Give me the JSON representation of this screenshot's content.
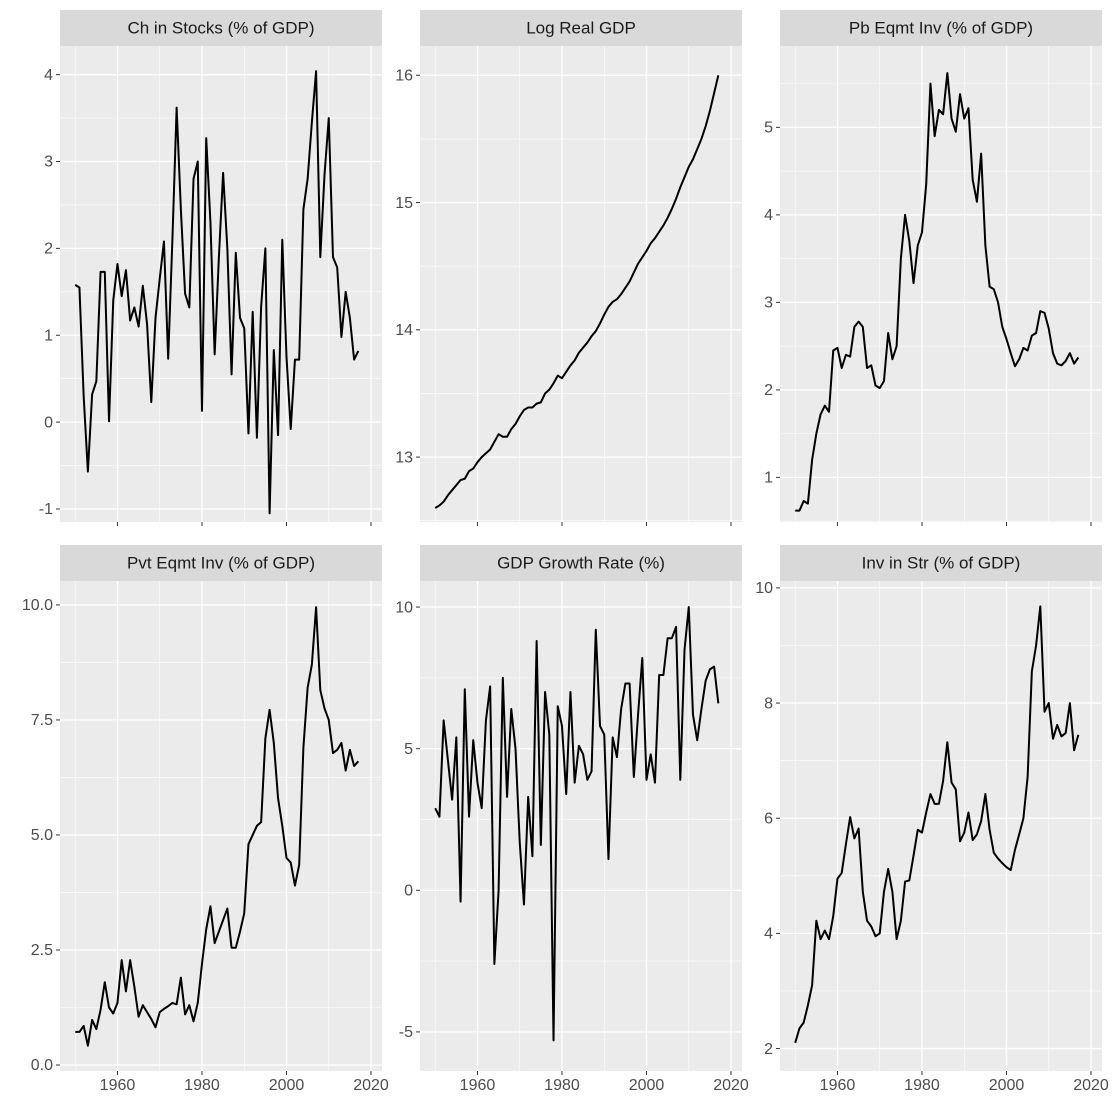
{
  "chart_data": [
    {
      "type": "line",
      "title": "Ch in Stocks (% of GDP)",
      "color": "#000000",
      "grid": true,
      "x": [
        1950,
        1951,
        1952,
        1953,
        1954,
        1955,
        1956,
        1957,
        1958,
        1959,
        1960,
        1961,
        1962,
        1963,
        1964,
        1965,
        1966,
        1967,
        1968,
        1969,
        1970,
        1971,
        1972,
        1973,
        1974,
        1975,
        1976,
        1977,
        1978,
        1979,
        1980,
        1981,
        1982,
        1983,
        1984,
        1985,
        1986,
        1987,
        1988,
        1989,
        1990,
        1991,
        1992,
        1993,
        1994,
        1995,
        1996,
        1997,
        1998,
        1999,
        2000,
        2001,
        2002,
        2003,
        2004,
        2005,
        2006,
        2007,
        2008,
        2009,
        2010,
        2011,
        2012,
        2013,
        2014,
        2015,
        2016,
        2017
      ],
      "values": [
        1.58,
        1.55,
        0.3,
        -0.57,
        0.32,
        0.47,
        1.73,
        1.73,
        0.01,
        1.4,
        1.82,
        1.45,
        1.75,
        1.17,
        1.32,
        1.1,
        1.57,
        1.13,
        0.23,
        1.2,
        1.65,
        2.08,
        0.73,
        2.1,
        3.62,
        2.45,
        1.48,
        1.32,
        2.8,
        3.0,
        0.13,
        3.27,
        2.3,
        0.78,
        1.9,
        2.87,
        2.0,
        0.55,
        1.95,
        1.2,
        1.08,
        -0.13,
        1.27,
        -0.18,
        1.33,
        2.0,
        -1.05,
        0.83,
        -0.15,
        2.1,
        0.75,
        -0.08,
        0.72,
        0.72,
        2.45,
        2.8,
        3.45,
        4.04,
        1.9,
        2.85,
        3.5,
        1.9,
        1.78,
        0.98,
        1.5,
        1.2,
        0.72,
        0.82
      ],
      "xlim": [
        1946.4,
        2022.6
      ],
      "xticks": [
        1960,
        1980,
        2000,
        2020
      ],
      "ylim": [
        -1.15,
        4.33
      ],
      "yticks": [
        -1,
        0,
        1,
        2,
        3,
        4
      ]
    },
    {
      "type": "line",
      "title": "Log Real GDP",
      "color": "#000000",
      "grid": true,
      "x": [
        1950,
        1951,
        1952,
        1953,
        1954,
        1955,
        1956,
        1957,
        1958,
        1959,
        1960,
        1961,
        1962,
        1963,
        1964,
        1965,
        1966,
        1967,
        1968,
        1969,
        1970,
        1971,
        1972,
        1973,
        1974,
        1975,
        1976,
        1977,
        1978,
        1979,
        1980,
        1981,
        1982,
        1983,
        1984,
        1985,
        1986,
        1987,
        1988,
        1989,
        1990,
        1991,
        1992,
        1993,
        1994,
        1995,
        1996,
        1997,
        1998,
        1999,
        2000,
        2001,
        2002,
        2003,
        2004,
        2005,
        2006,
        2007,
        2008,
        2009,
        2010,
        2011,
        2012,
        2013,
        2014,
        2015,
        2016,
        2017
      ],
      "values": [
        12.6,
        12.62,
        12.65,
        12.7,
        12.74,
        12.78,
        12.82,
        12.83,
        12.89,
        12.91,
        12.96,
        13.0,
        13.03,
        13.06,
        13.12,
        13.18,
        13.16,
        13.16,
        13.22,
        13.26,
        13.32,
        13.37,
        13.39,
        13.39,
        13.42,
        13.43,
        13.5,
        13.53,
        13.58,
        13.64,
        13.62,
        13.67,
        13.72,
        13.76,
        13.82,
        13.86,
        13.9,
        13.95,
        13.99,
        14.05,
        14.12,
        14.18,
        14.22,
        14.24,
        14.28,
        14.33,
        14.38,
        14.45,
        14.52,
        14.57,
        14.62,
        14.68,
        14.72,
        14.77,
        14.82,
        14.88,
        14.95,
        15.03,
        15.12,
        15.2,
        15.28,
        15.34,
        15.42,
        15.5,
        15.6,
        15.72,
        15.86,
        16.0
      ],
      "xlim": [
        1946.4,
        2022.6
      ],
      "xticks": [
        1960,
        1980,
        2000,
        2020
      ],
      "ylim": [
        12.49,
        16.23
      ],
      "yticks": [
        13,
        14,
        15,
        16
      ]
    },
    {
      "type": "line",
      "title": "Pb Eqmt Inv (% of GDP)",
      "color": "#000000",
      "grid": true,
      "x": [
        1950,
        1951,
        1952,
        1953,
        1954,
        1955,
        1956,
        1957,
        1958,
        1959,
        1960,
        1961,
        1962,
        1963,
        1964,
        1965,
        1966,
        1967,
        1968,
        1969,
        1970,
        1971,
        1972,
        1973,
        1974,
        1975,
        1976,
        1977,
        1978,
        1979,
        1980,
        1981,
        1982,
        1983,
        1984,
        1985,
        1986,
        1987,
        1988,
        1989,
        1990,
        1991,
        1992,
        1993,
        1994,
        1995,
        1996,
        1997,
        1998,
        1999,
        2000,
        2001,
        2002,
        2003,
        2004,
        2005,
        2006,
        2007,
        2008,
        2009,
        2010,
        2011,
        2012,
        2013,
        2014,
        2015,
        2016,
        2017
      ],
      "values": [
        0.62,
        0.62,
        0.73,
        0.7,
        1.2,
        1.5,
        1.72,
        1.82,
        1.75,
        2.45,
        2.48,
        2.25,
        2.4,
        2.38,
        2.72,
        2.78,
        2.72,
        2.25,
        2.28,
        2.05,
        2.02,
        2.1,
        2.65,
        2.35,
        2.5,
        3.5,
        4.0,
        3.7,
        3.22,
        3.65,
        3.8,
        4.35,
        5.5,
        4.9,
        5.2,
        5.15,
        5.62,
        5.1,
        4.95,
        5.38,
        5.1,
        5.22,
        4.4,
        4.15,
        4.7,
        3.65,
        3.18,
        3.15,
        3.0,
        2.72,
        2.58,
        2.42,
        2.27,
        2.35,
        2.48,
        2.45,
        2.62,
        2.65,
        2.9,
        2.88,
        2.7,
        2.42,
        2.3,
        2.28,
        2.33,
        2.42,
        2.3,
        2.37
      ],
      "xlim": [
        1946.4,
        2022.6
      ],
      "xticks": [
        1960,
        1980,
        2000,
        2020
      ],
      "ylim": [
        0.49,
        5.93
      ],
      "yticks": [
        1,
        2,
        3,
        4,
        5
      ]
    },
    {
      "type": "line",
      "title": "Pvt Eqmt Inv (% of GDP)",
      "color": "#000000",
      "grid": true,
      "x": [
        1950,
        1951,
        1952,
        1953,
        1954,
        1955,
        1956,
        1957,
        1958,
        1959,
        1960,
        1961,
        1962,
        1963,
        1964,
        1965,
        1966,
        1967,
        1968,
        1969,
        1970,
        1971,
        1972,
        1973,
        1974,
        1975,
        1976,
        1977,
        1978,
        1979,
        1980,
        1981,
        1982,
        1983,
        1984,
        1985,
        1986,
        1987,
        1988,
        1989,
        1990,
        1991,
        1992,
        1993,
        1994,
        1995,
        1996,
        1997,
        1998,
        1999,
        2000,
        2001,
        2002,
        2003,
        2004,
        2005,
        2006,
        2007,
        2008,
        2009,
        2010,
        2011,
        2012,
        2013,
        2014,
        2015,
        2016,
        2017
      ],
      "values": [
        0.72,
        0.72,
        0.85,
        0.42,
        0.98,
        0.78,
        1.2,
        1.8,
        1.25,
        1.12,
        1.35,
        2.28,
        1.6,
        2.28,
        1.7,
        1.05,
        1.3,
        1.15,
        1.0,
        0.82,
        1.15,
        1.22,
        1.28,
        1.35,
        1.32,
        1.9,
        1.1,
        1.3,
        0.95,
        1.35,
        2.2,
        2.95,
        3.45,
        2.65,
        2.9,
        3.15,
        3.4,
        2.55,
        2.55,
        2.9,
        3.3,
        4.8,
        5.0,
        5.2,
        5.28,
        7.1,
        7.72,
        7.0,
        5.8,
        5.2,
        4.5,
        4.4,
        3.9,
        4.35,
        6.9,
        8.2,
        8.7,
        9.95,
        8.15,
        7.75,
        7.5,
        6.78,
        6.85,
        7.0,
        6.4,
        6.85,
        6.5,
        6.6
      ],
      "xlim": [
        1946.4,
        2022.6
      ],
      "xticks": [
        1960,
        1980,
        2000,
        2020
      ],
      "ylim": [
        -0.13,
        10.52
      ],
      "yticks": [
        {
          "value": 0,
          "label": "0.0"
        },
        2.5,
        {
          "value": 5,
          "label": "5.0"
        },
        7.5,
        {
          "value": 10,
          "label": "10.0"
        }
      ]
    },
    {
      "type": "line",
      "title": "GDP Growth Rate (%)",
      "color": "#000000",
      "grid": true,
      "x": [
        1950,
        1951,
        1952,
        1953,
        1954,
        1955,
        1956,
        1957,
        1958,
        1959,
        1960,
        1961,
        1962,
        1963,
        1964,
        1965,
        1966,
        1967,
        1968,
        1969,
        1970,
        1971,
        1972,
        1973,
        1974,
        1975,
        1976,
        1977,
        1978,
        1979,
        1980,
        1981,
        1982,
        1983,
        1984,
        1985,
        1986,
        1987,
        1988,
        1989,
        1990,
        1991,
        1992,
        1993,
        1994,
        1995,
        1996,
        1997,
        1998,
        1999,
        2000,
        2001,
        2002,
        2003,
        2004,
        2005,
        2006,
        2007,
        2008,
        2009,
        2010,
        2011,
        2012,
        2013,
        2014,
        2015,
        2016,
        2017
      ],
      "values": [
        2.9,
        2.6,
        6.0,
        4.6,
        3.2,
        5.4,
        -0.4,
        7.1,
        2.6,
        5.3,
        3.8,
        2.9,
        6.0,
        7.2,
        -2.6,
        0.0,
        7.5,
        3.3,
        6.4,
        5.0,
        1.7,
        -0.5,
        3.3,
        1.2,
        8.8,
        1.6,
        7.0,
        5.5,
        -5.3,
        6.5,
        5.8,
        3.4,
        7.0,
        3.8,
        5.1,
        4.8,
        3.9,
        4.2,
        9.2,
        5.8,
        5.5,
        1.1,
        5.4,
        4.7,
        6.4,
        7.3,
        7.3,
        4.0,
        6.2,
        8.2,
        3.9,
        4.8,
        3.8,
        7.6,
        7.6,
        8.9,
        8.9,
        9.3,
        3.9,
        8.5,
        10.0,
        6.2,
        5.3,
        6.4,
        7.4,
        7.8,
        7.9,
        6.6
      ],
      "xlim": [
        1946.4,
        2022.6
      ],
      "xticks": [
        1960,
        1980,
        2000,
        2020
      ],
      "ylim": [
        -6.38,
        10.92
      ],
      "yticks": [
        -5,
        0,
        5,
        10
      ]
    },
    {
      "type": "line",
      "title": "Inv in Str (% of GDP)",
      "color": "#000000",
      "grid": true,
      "x": [
        1950,
        1951,
        1952,
        1953,
        1954,
        1955,
        1956,
        1957,
        1958,
        1959,
        1960,
        1961,
        1962,
        1963,
        1964,
        1965,
        1966,
        1967,
        1968,
        1969,
        1970,
        1971,
        1972,
        1973,
        1974,
        1975,
        1976,
        1977,
        1978,
        1979,
        1980,
        1981,
        1982,
        1983,
        1984,
        1985,
        1986,
        1987,
        1988,
        1989,
        1990,
        1991,
        1992,
        1993,
        1994,
        1995,
        1996,
        1997,
        1998,
        1999,
        2000,
        2001,
        2002,
        2003,
        2004,
        2005,
        2006,
        2007,
        2008,
        2009,
        2010,
        2011,
        2012,
        2013,
        2014,
        2015,
        2016,
        2017
      ],
      "values": [
        2.1,
        2.35,
        2.45,
        2.75,
        3.1,
        4.22,
        3.9,
        4.05,
        3.9,
        4.3,
        4.95,
        5.05,
        5.55,
        6.02,
        5.65,
        5.82,
        4.72,
        4.22,
        4.12,
        3.95,
        4.0,
        4.72,
        5.12,
        4.72,
        3.9,
        4.22,
        4.9,
        4.92,
        5.35,
        5.8,
        5.75,
        6.1,
        6.42,
        6.25,
        6.25,
        6.65,
        7.32,
        6.62,
        6.5,
        5.6,
        5.75,
        6.1,
        5.62,
        5.72,
        5.95,
        6.42,
        5.8,
        5.4,
        5.3,
        5.22,
        5.15,
        5.1,
        5.45,
        5.72,
        6.0,
        6.72,
        8.55,
        9.0,
        9.68,
        7.85,
        8.0,
        7.38,
        7.62,
        7.42,
        7.48,
        8.0,
        7.18,
        7.45
      ],
      "xlim": [
        1946.4,
        2022.6
      ],
      "xticks": [
        1960,
        1980,
        2000,
        2020
      ],
      "ylim": [
        1.61,
        10.12
      ],
      "yticks": [
        2,
        4,
        6,
        8,
        10
      ]
    }
  ]
}
